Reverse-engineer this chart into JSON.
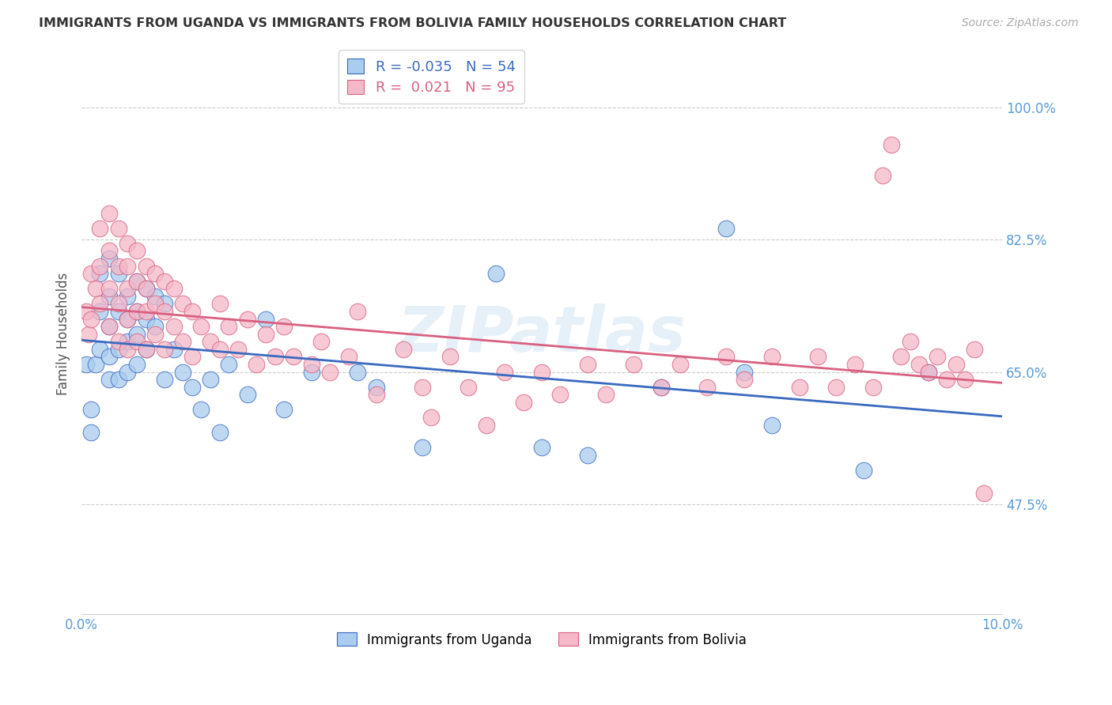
{
  "title": "IMMIGRANTS FROM UGANDA VS IMMIGRANTS FROM BOLIVIA FAMILY HOUSEHOLDS CORRELATION CHART",
  "source": "Source: ZipAtlas.com",
  "ylabel": "Family Households",
  "legend_label1": "Immigrants from Uganda",
  "legend_label2": "Immigrants from Bolivia",
  "legend_R1": "-0.035",
  "legend_N1": "54",
  "legend_R2": "0.021",
  "legend_N2": "95",
  "xlim": [
    0.0,
    0.1
  ],
  "ylim": [
    0.33,
    1.07
  ],
  "yticks": [
    0.475,
    0.65,
    0.825,
    1.0
  ],
  "ytick_labels": [
    "47.5%",
    "65.0%",
    "82.5%",
    "100.0%"
  ],
  "xticks": [
    0.0,
    0.02,
    0.04,
    0.06,
    0.08,
    0.1
  ],
  "xtick_labels": [
    "0.0%",
    "",
    "",
    "",
    "",
    "10.0%"
  ],
  "color_uganda": "#aaccee",
  "color_bolivia": "#f4b8c8",
  "line_color_uganda": "#3a6abf",
  "line_color_bolivia": "#d96080",
  "uganda_x": [
    0.0005,
    0.001,
    0.001,
    0.0015,
    0.002,
    0.002,
    0.002,
    0.003,
    0.003,
    0.003,
    0.003,
    0.003,
    0.004,
    0.004,
    0.004,
    0.004,
    0.005,
    0.005,
    0.005,
    0.005,
    0.006,
    0.006,
    0.006,
    0.006,
    0.007,
    0.007,
    0.007,
    0.008,
    0.008,
    0.009,
    0.009,
    0.01,
    0.011,
    0.012,
    0.013,
    0.014,
    0.015,
    0.016,
    0.018,
    0.02,
    0.022,
    0.025,
    0.03,
    0.032,
    0.037,
    0.045,
    0.05,
    0.055,
    0.063,
    0.07,
    0.072,
    0.075,
    0.085,
    0.092
  ],
  "uganda_y": [
    0.66,
    0.6,
    0.57,
    0.66,
    0.78,
    0.73,
    0.68,
    0.8,
    0.75,
    0.71,
    0.67,
    0.64,
    0.78,
    0.73,
    0.68,
    0.64,
    0.75,
    0.72,
    0.69,
    0.65,
    0.77,
    0.73,
    0.7,
    0.66,
    0.76,
    0.72,
    0.68,
    0.75,
    0.71,
    0.74,
    0.64,
    0.68,
    0.65,
    0.63,
    0.6,
    0.64,
    0.57,
    0.66,
    0.62,
    0.72,
    0.6,
    0.65,
    0.65,
    0.63,
    0.55,
    0.78,
    0.55,
    0.54,
    0.63,
    0.84,
    0.65,
    0.58,
    0.52,
    0.65
  ],
  "bolivia_x": [
    0.0005,
    0.0008,
    0.001,
    0.001,
    0.0015,
    0.002,
    0.002,
    0.002,
    0.003,
    0.003,
    0.003,
    0.003,
    0.004,
    0.004,
    0.004,
    0.004,
    0.005,
    0.005,
    0.005,
    0.005,
    0.005,
    0.006,
    0.006,
    0.006,
    0.006,
    0.007,
    0.007,
    0.007,
    0.007,
    0.008,
    0.008,
    0.008,
    0.009,
    0.009,
    0.009,
    0.01,
    0.01,
    0.011,
    0.011,
    0.012,
    0.012,
    0.013,
    0.014,
    0.015,
    0.015,
    0.016,
    0.017,
    0.018,
    0.019,
    0.02,
    0.021,
    0.022,
    0.023,
    0.025,
    0.026,
    0.027,
    0.029,
    0.03,
    0.032,
    0.035,
    0.037,
    0.038,
    0.04,
    0.042,
    0.044,
    0.046,
    0.048,
    0.05,
    0.052,
    0.055,
    0.057,
    0.06,
    0.063,
    0.065,
    0.068,
    0.07,
    0.072,
    0.075,
    0.078,
    0.08,
    0.082,
    0.084,
    0.086,
    0.087,
    0.088,
    0.089,
    0.09,
    0.091,
    0.092,
    0.093,
    0.094,
    0.095,
    0.096,
    0.097,
    0.098
  ],
  "bolivia_y": [
    0.73,
    0.7,
    0.78,
    0.72,
    0.76,
    0.84,
    0.79,
    0.74,
    0.86,
    0.81,
    0.76,
    0.71,
    0.84,
    0.79,
    0.74,
    0.69,
    0.82,
    0.79,
    0.76,
    0.72,
    0.68,
    0.81,
    0.77,
    0.73,
    0.69,
    0.79,
    0.76,
    0.73,
    0.68,
    0.78,
    0.74,
    0.7,
    0.77,
    0.73,
    0.68,
    0.76,
    0.71,
    0.74,
    0.69,
    0.73,
    0.67,
    0.71,
    0.69,
    0.74,
    0.68,
    0.71,
    0.68,
    0.72,
    0.66,
    0.7,
    0.67,
    0.71,
    0.67,
    0.66,
    0.69,
    0.65,
    0.67,
    0.73,
    0.62,
    0.68,
    0.63,
    0.59,
    0.67,
    0.63,
    0.58,
    0.65,
    0.61,
    0.65,
    0.62,
    0.66,
    0.62,
    0.66,
    0.63,
    0.66,
    0.63,
    0.67,
    0.64,
    0.67,
    0.63,
    0.67,
    0.63,
    0.66,
    0.63,
    0.91,
    0.95,
    0.67,
    0.69,
    0.66,
    0.65,
    0.67,
    0.64,
    0.66,
    0.64,
    0.68,
    0.49
  ],
  "watermark": "ZIPatlas",
  "background_color": "#ffffff",
  "grid_color": "#cccccc"
}
